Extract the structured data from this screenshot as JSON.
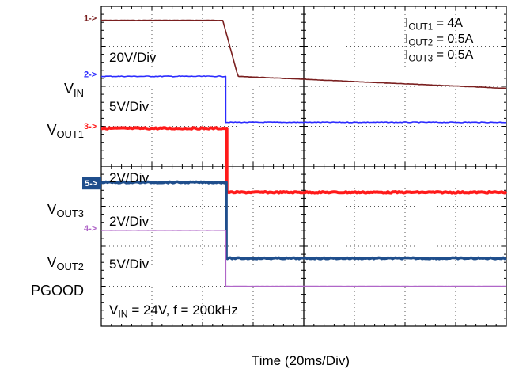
{
  "chart_data": {
    "type": "line",
    "title": "",
    "xlabel": "Time (20ms/Div)",
    "ylabel": "",
    "x_divisions": 8,
    "y_divisions": 8,
    "grid": true,
    "event_x_div": 2.45,
    "colors": {
      "vin": "#7a1f1f",
      "vout1": "#2b2bff",
      "vout3": "#ff1a1a",
      "vout2": "#1f4e8c",
      "pgood": "#b066c8",
      "marker_vout2_bg": "#1f4e8c"
    },
    "channels": [
      {
        "id": "1",
        "marker": "1->",
        "color_key": "vin",
        "scale": "20V/Div",
        "label_main": "V",
        "label_sub": "IN",
        "pre_level_div": 7.65,
        "post_level_div": 6.1,
        "ripple": 0.2
      },
      {
        "id": "2",
        "marker": "2->",
        "color_key": "vout1",
        "scale": "5V/Div",
        "label_main": "V",
        "label_sub": "OUT1",
        "pre_level_div": 6.25,
        "post_level_div": 5.1,
        "ripple": 0.5
      },
      {
        "id": "3",
        "marker": "3->",
        "color_key": "vout3",
        "scale": "2V/Div",
        "label_main": "V",
        "label_sub": "OUT3",
        "pre_level_div": 4.95,
        "post_level_div": 3.35,
        "ripple": 0.8
      },
      {
        "id": "5",
        "marker": "5->",
        "color_key": "vout2",
        "scale": "2V/Div",
        "label_main": "V",
        "label_sub": "OUT2",
        "pre_level_div": 3.6,
        "post_level_div": 1.7,
        "ripple": 0.8
      },
      {
        "id": "4",
        "marker": "4->",
        "color_key": "pgood",
        "scale": "5V/Div",
        "label_main": "PGOOD",
        "label_sub": "",
        "pre_level_div": 2.4,
        "post_level_div": 1.0,
        "ripple": 0.1
      }
    ],
    "annotations": {
      "currents": [
        {
          "main": "I",
          "sub": "OUT1",
          "value": " = 4A"
        },
        {
          "main": "I",
          "sub": "OUT2",
          "value": " = 0.5A"
        },
        {
          "main": "I",
          "sub": "OUT3",
          "value": " = 0.5A"
        }
      ],
      "conditions": {
        "main": "V",
        "sub": "IN",
        "value": " = 24V, f = 200kHz"
      }
    }
  }
}
